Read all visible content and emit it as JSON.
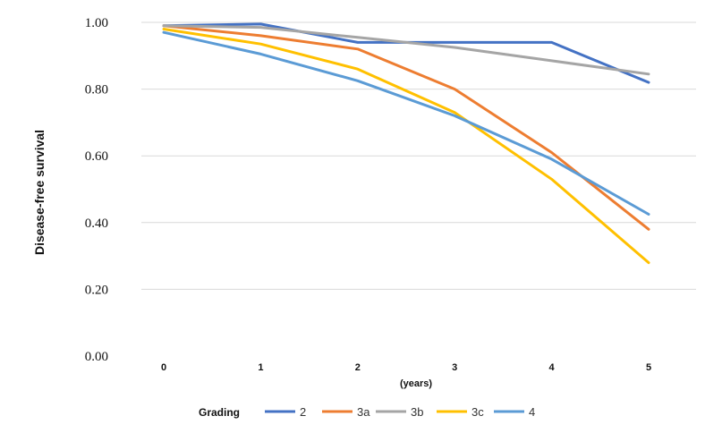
{
  "chart_data": {
    "type": "line",
    "title": "",
    "xlabel": "(years)",
    "ylabel": "Disease-free survival",
    "x": [
      0,
      1,
      2,
      3,
      4,
      5
    ],
    "x_tick_labels": [
      "0",
      "1",
      "2",
      "3",
      "4",
      "5"
    ],
    "y_tick_labels": [
      "0.00",
      "0.20",
      "0.40",
      "0.60",
      "0.80",
      "1.00"
    ],
    "ylim": [
      0,
      1.0
    ],
    "grid": "horizontal",
    "legend_title": "Grading",
    "legend_position": "bottom",
    "series": [
      {
        "name": "2",
        "color": "#4472C4",
        "values": [
          0.99,
          0.995,
          0.94,
          0.94,
          0.94,
          0.82
        ]
      },
      {
        "name": "3a",
        "color": "#ED7D31",
        "values": [
          0.99,
          0.96,
          0.92,
          0.8,
          0.61,
          0.38
        ]
      },
      {
        "name": "3b",
        "color": "#A5A5A5",
        "values": [
          0.99,
          0.985,
          0.955,
          0.925,
          0.885,
          0.845
        ]
      },
      {
        "name": "3c",
        "color": "#FFC000",
        "values": [
          0.98,
          0.935,
          0.86,
          0.73,
          0.53,
          0.28
        ]
      },
      {
        "name": "4",
        "color": "#5B9BD5",
        "values": [
          0.97,
          0.905,
          0.825,
          0.72,
          0.59,
          0.425
        ]
      }
    ]
  }
}
